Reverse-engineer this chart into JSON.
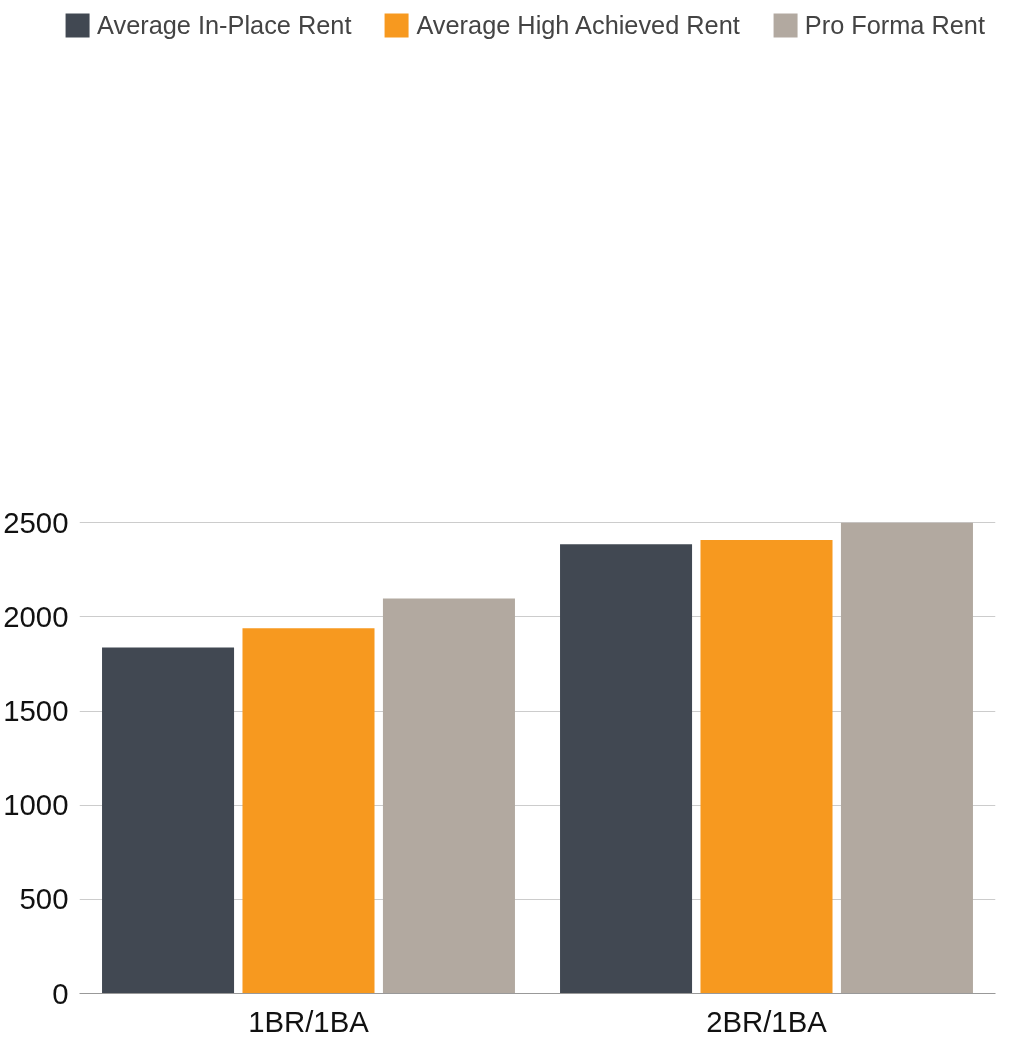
{
  "chart_data": {
    "type": "bar",
    "categories": [
      "1BR/1BA",
      "2BR/1BA"
    ],
    "series": [
      {
        "name": "Average In-Place Rent",
        "color": "#414852",
        "values": [
          1838,
          2386
        ]
      },
      {
        "name": "Average High Achieved Rent",
        "color": "#f7991f",
        "values": [
          1940,
          2409
        ]
      },
      {
        "name": "Pro Forma Rent",
        "color": "#b2a9a0",
        "values": [
          2098,
          2500
        ]
      }
    ],
    "ylim": [
      0,
      2500
    ],
    "yticks": [
      0,
      500,
      1000,
      1500,
      2000,
      2500
    ],
    "grid": "y",
    "legend": "top"
  }
}
